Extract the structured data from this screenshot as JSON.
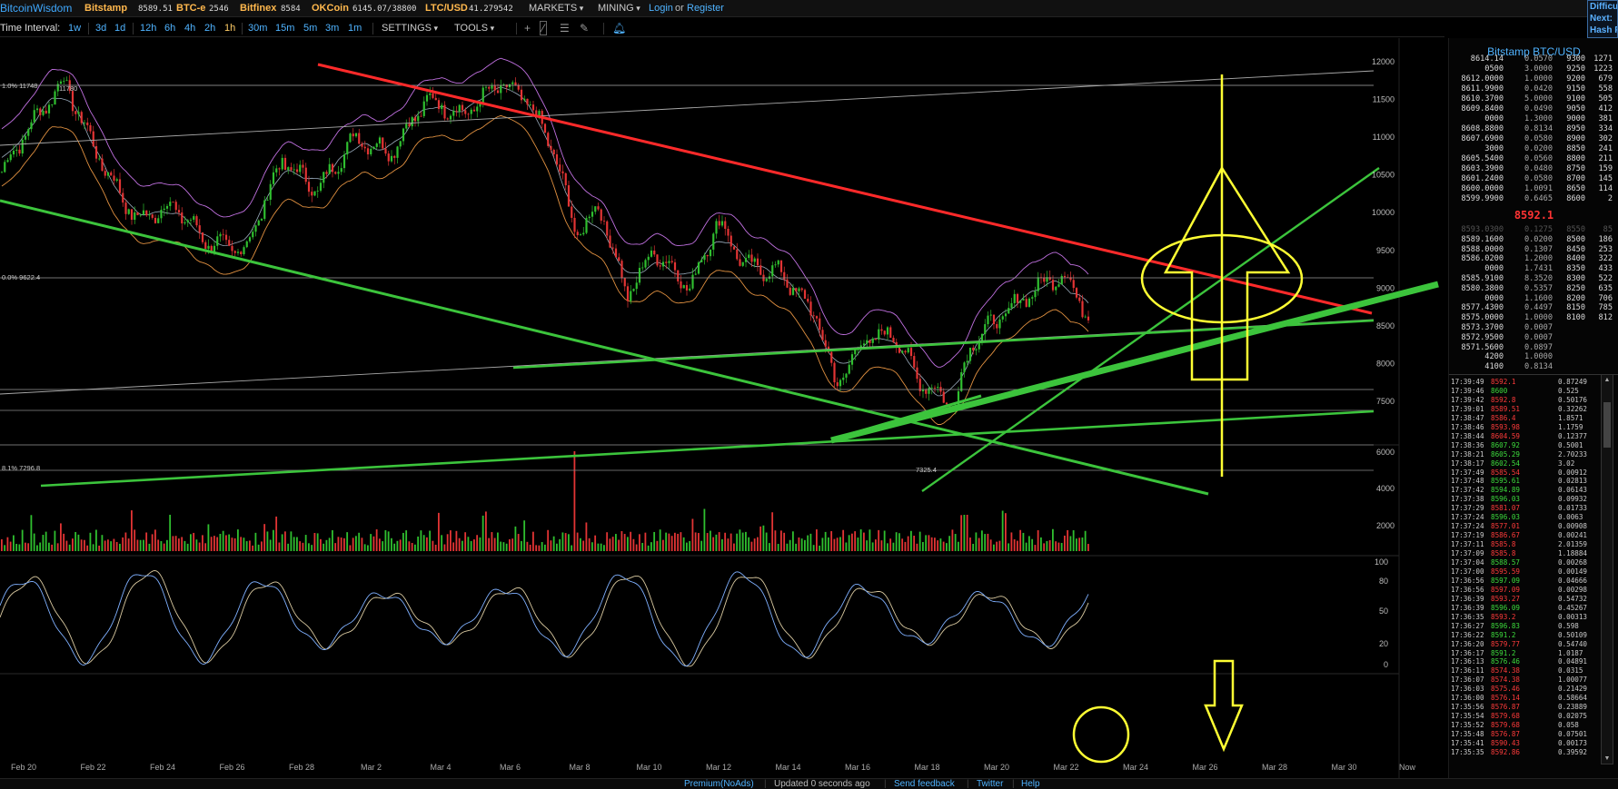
{
  "topbar": {
    "brand": "BitcoinWisdom",
    "exchanges": [
      {
        "name": "Bitstamp",
        "value": "8589.51"
      },
      {
        "name": "BTC-e",
        "value": "2546"
      },
      {
        "name": "Bitfinex",
        "value": "8584"
      },
      {
        "name": "OKCoin",
        "value": "6145.07/38800"
      },
      {
        "name": "LTC/USD",
        "value": "41.279542"
      }
    ],
    "markets_label": "MARKETS",
    "mining_label": "MINING",
    "login_label": "Login",
    "or_label": "or",
    "register_label": "Register",
    "side": [
      "Difficu",
      "Next:",
      "Hash R"
    ]
  },
  "toolbar": {
    "interval_label": "Time Interval:",
    "intervals": [
      "1w",
      "3d",
      "1d",
      "12h",
      "6h",
      "4h",
      "2h",
      "1h",
      "30m",
      "15m",
      "5m",
      "3m",
      "1m"
    ],
    "active_interval": "1h",
    "settings_label": "SETTINGS",
    "tools_label": "TOOLS",
    "tool_icons": [
      "crosshair-icon",
      "line-icon",
      "hamburger-icon",
      "brush-icon",
      "bell-icon"
    ]
  },
  "chart_data": {
    "type": "candlestick",
    "price_axis": [
      "12000",
      "11500",
      "11000",
      "10500",
      "10000",
      "9500",
      "9000",
      "8500",
      "8000",
      "7500"
    ],
    "volume_axis": [
      "6000",
      "4000",
      "2000"
    ],
    "oscillator_axis": [
      "100",
      "80",
      "50",
      "20",
      "0"
    ],
    "x_labels": [
      "Feb 20",
      "Feb 22",
      "Feb 24",
      "Feb 26",
      "Feb 28",
      "Mar 2",
      "Mar 4",
      "Mar 6",
      "Mar 8",
      "Mar 10",
      "Mar 12",
      "Mar 14",
      "Mar 16",
      "Mar 18",
      "Mar 20",
      "Mar 22",
      "Mar 24",
      "Mar 26",
      "Mar 28",
      "Mar 30",
      "Now"
    ],
    "fib_labels": [
      {
        "text": "1.0% 11748"
      },
      {
        "text": "11780"
      },
      {
        "text": "0.0% 9622.4"
      },
      {
        "text": "8.1% 7296.8"
      },
      {
        "text": "7325.4"
      }
    ],
    "colors": {
      "up": "#2fbf2f",
      "down": "#e23434",
      "trend_red": "#ff2a2a",
      "trend_green": "#3cc43c",
      "annotation": "#ffff33",
      "boll_upper": "#c070e0",
      "boll_lower": "#e09040",
      "ma": "#9ab"
    }
  },
  "panel": {
    "title": "Bitstamp BTC/USD",
    "asks": [
      [
        "8614.14",
        "0.0570",
        "9300",
        "1271"
      ],
      [
        "0500",
        "3.0000",
        "9250",
        "1223"
      ],
      [
        "8612.0000",
        "1.0000",
        "9200",
        "679"
      ],
      [
        "8611.9900",
        "0.0420",
        "9150",
        "558"
      ],
      [
        "8610.3700",
        "5.0000",
        "9100",
        "505"
      ],
      [
        "8609.8400",
        "0.0490",
        "9050",
        "412"
      ],
      [
        "0000",
        "1.3000",
        "9000",
        "381"
      ],
      [
        "8608.8800",
        "0.8134",
        "8950",
        "334"
      ],
      [
        "8607.6900",
        "0.0580",
        "8900",
        "302"
      ],
      [
        "3000",
        "0.0200",
        "8850",
        "241"
      ],
      [
        "8605.5400",
        "0.0560",
        "8800",
        "211"
      ],
      [
        "8603.3900",
        "0.0480",
        "8750",
        "159"
      ],
      [
        "8601.2400",
        "0.0580",
        "8700",
        "145"
      ],
      [
        "8600.0000",
        "1.0091",
        "8650",
        "114"
      ],
      [
        "8599.9900",
        "0.6465",
        "8600",
        "2"
      ]
    ],
    "last_price": "8592.1",
    "bids": [
      [
        "8593.0300",
        "0.1275",
        "8550",
        "85"
      ],
      [
        "8589.1600",
        "0.0200",
        "8500",
        "186"
      ],
      [
        "8588.0000",
        "0.1307",
        "8450",
        "253"
      ],
      [
        "8586.0200",
        "1.2000",
        "8400",
        "322"
      ],
      [
        "0000",
        "1.7431",
        "8350",
        "433"
      ],
      [
        "8585.9100",
        "8.3520",
        "8300",
        "522"
      ],
      [
        "8580.3800",
        "0.5357",
        "8250",
        "635"
      ],
      [
        "0000",
        "1.1600",
        "8200",
        "706"
      ],
      [
        "8577.4300",
        "0.4497",
        "8150",
        "785"
      ],
      [
        "8575.0000",
        "1.0000",
        "8100",
        "812"
      ],
      [
        "8573.3700",
        "0.0007",
        "",
        ""
      ],
      [
        "8572.9500",
        "0.0007",
        "",
        ""
      ],
      [
        "8571.5600",
        "0.0897",
        "",
        ""
      ],
      [
        "4200",
        "1.0000",
        "",
        ""
      ],
      [
        "4100",
        "0.8134",
        "",
        ""
      ]
    ],
    "trades": [
      [
        "17:39:49",
        "8592.1",
        "0.87249",
        "down"
      ],
      [
        "17:39:46",
        "8600",
        "0.525",
        "up"
      ],
      [
        "17:39:42",
        "8592.8",
        "0.50176",
        "down"
      ],
      [
        "17:39:01",
        "8589.51",
        "0.32262",
        "down"
      ],
      [
        "17:38:47",
        "8586.4",
        "1.8571",
        "down"
      ],
      [
        "17:38:46",
        "8593.98",
        "1.1759",
        "down"
      ],
      [
        "17:38:44",
        "8604.59",
        "0.12377",
        "down"
      ],
      [
        "17:38:36",
        "8607.92",
        "0.5001",
        "up"
      ],
      [
        "17:38:21",
        "8605.29",
        "2.70233",
        "up"
      ],
      [
        "17:38:17",
        "8602.54",
        "3.02",
        "up"
      ],
      [
        "17:37:49",
        "8585.54",
        "0.00912",
        "down"
      ],
      [
        "17:37:48",
        "8595.61",
        "0.02813",
        "up"
      ],
      [
        "17:37:42",
        "8594.89",
        "0.06143",
        "up"
      ],
      [
        "17:37:38",
        "8596.03",
        "0.09932",
        "up"
      ],
      [
        "17:37:29",
        "8581.07",
        "0.01733",
        "down"
      ],
      [
        "17:37:24",
        "8596.03",
        "0.0063",
        "up"
      ],
      [
        "17:37:24",
        "8577.01",
        "0.00908",
        "down"
      ],
      [
        "17:37:19",
        "8586.67",
        "0.00241",
        "down"
      ],
      [
        "17:37:11",
        "8585.8",
        "2.01359",
        "down"
      ],
      [
        "17:37:09",
        "8585.8",
        "1.18884",
        "down"
      ],
      [
        "17:37:04",
        "8588.57",
        "0.00268",
        "up"
      ],
      [
        "17:37:00",
        "8595.59",
        "0.00149",
        "down"
      ],
      [
        "17:36:56",
        "8597.09",
        "0.04666",
        "up"
      ],
      [
        "17:36:56",
        "8597.09",
        "0.00298",
        "down"
      ],
      [
        "17:36:39",
        "8593.27",
        "0.54732",
        "down"
      ],
      [
        "17:36:39",
        "8596.09",
        "0.45267",
        "up"
      ],
      [
        "17:36:35",
        "8593.2",
        "0.00313",
        "down"
      ],
      [
        "17:36:27",
        "8596.83",
        "0.598",
        "up"
      ],
      [
        "17:36:22",
        "8591.2",
        "0.50109",
        "up"
      ],
      [
        "17:36:20",
        "8579.77",
        "0.54740",
        "down"
      ],
      [
        "17:36:17",
        "8591.2",
        "1.0187",
        "up"
      ],
      [
        "17:36:13",
        "8576.46",
        "0.04891",
        "up"
      ],
      [
        "17:36:11",
        "8574.38",
        "0.0315",
        "down"
      ],
      [
        "17:36:07",
        "8574.38",
        "1.00077",
        "down"
      ],
      [
        "17:36:03",
        "8575.46",
        "0.21429",
        "down"
      ],
      [
        "17:36:00",
        "8576.14",
        "0.58664",
        "down"
      ],
      [
        "17:35:56",
        "8576.87",
        "0.23889",
        "down"
      ],
      [
        "17:35:54",
        "8579.68",
        "0.02075",
        "down"
      ],
      [
        "17:35:52",
        "8579.68",
        "0.058",
        "down"
      ],
      [
        "17:35:48",
        "8576.87",
        "0.07501",
        "down"
      ],
      [
        "17:35:41",
        "8590.43",
        "0.00173",
        "down"
      ],
      [
        "17:35:35",
        "8592.86",
        "0.39592",
        "down"
      ]
    ]
  },
  "footer": {
    "premium": "Premium(NoAds)",
    "updated": "Updated 0 seconds ago",
    "feedback": "Send feedback",
    "twitter": "Twitter",
    "help": "Help"
  }
}
